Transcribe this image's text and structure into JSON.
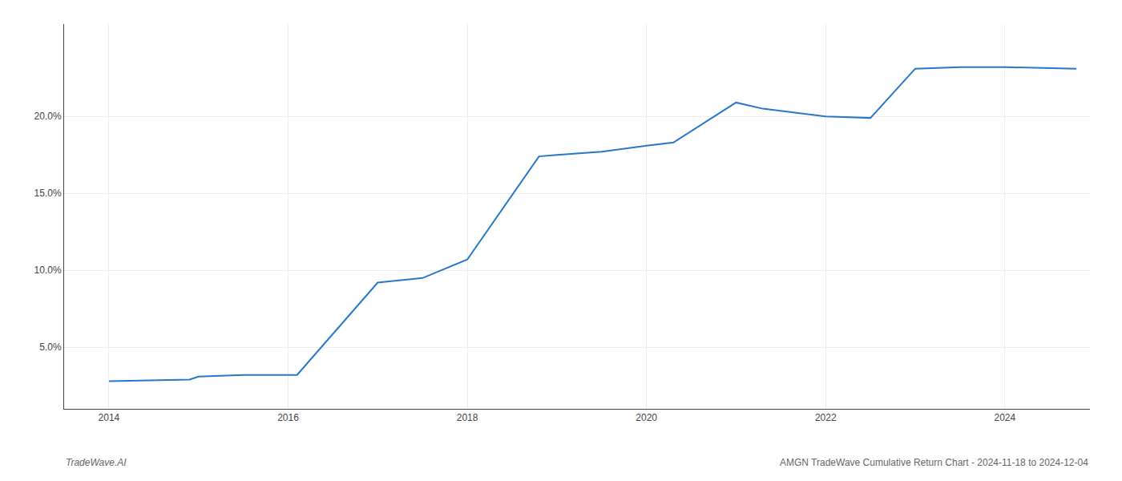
{
  "chart_data": {
    "type": "line",
    "x": [
      2014.0,
      2014.9,
      2015.0,
      2015.5,
      2016.0,
      2016.1,
      2017.0,
      2017.5,
      2018.0,
      2018.8,
      2019.0,
      2019.5,
      2020.0,
      2020.3,
      2021.0,
      2021.3,
      2022.0,
      2022.5,
      2023.0,
      2023.5,
      2024.0,
      2024.8
    ],
    "values": [
      2.8,
      2.9,
      3.1,
      3.2,
      3.2,
      3.2,
      9.2,
      9.5,
      10.7,
      17.4,
      17.5,
      17.7,
      18.1,
      18.3,
      20.9,
      20.5,
      20.0,
      19.9,
      23.1,
      23.2,
      23.2,
      23.1
    ],
    "color": "#2878c8",
    "xlim": [
      2013.5,
      2024.95
    ],
    "ylim": [
      1.0,
      26.0
    ],
    "xticks": [
      2014,
      2016,
      2018,
      2020,
      2022,
      2024
    ],
    "yticks": [
      {
        "value": 5.0,
        "label": "5.0%"
      },
      {
        "value": 10.0,
        "label": "10.0%"
      },
      {
        "value": 15.0,
        "label": "15.0%"
      },
      {
        "value": 20.0,
        "label": "20.0%"
      }
    ],
    "grid": true,
    "annotations": [
      "TradeWave.AI",
      "AMGN TradeWave Cumulative Return Chart - 2024-11-18 to 2024-12-04"
    ]
  }
}
